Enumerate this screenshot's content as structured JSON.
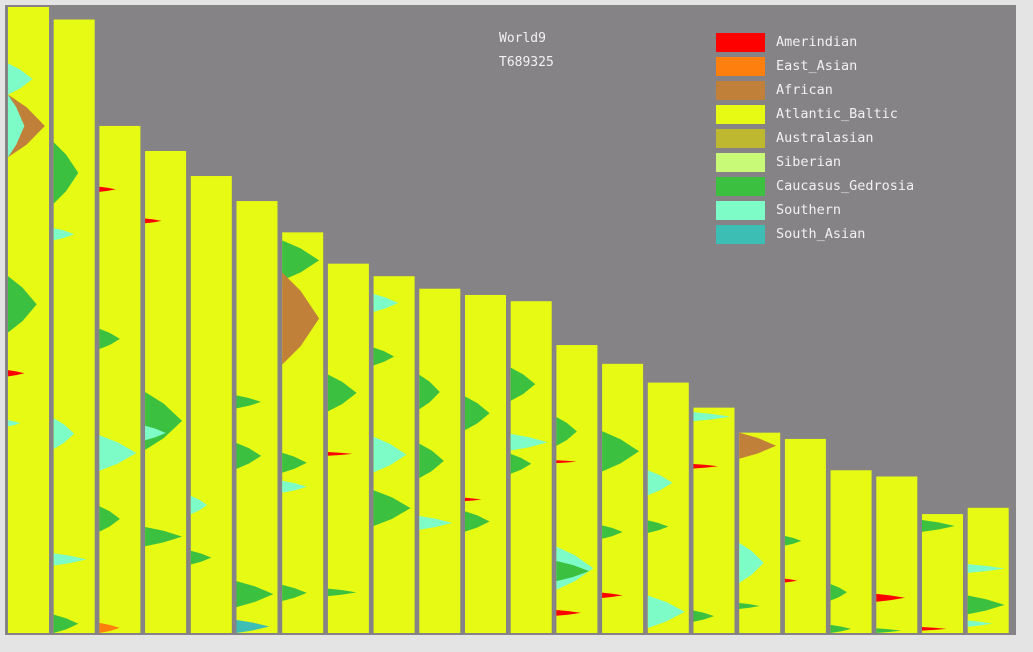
{
  "chart_data": {
    "type": "chromosome-painting",
    "title": "World9",
    "subtitle": "T689325",
    "legend_placement": "top-right",
    "background_color": "#858385",
    "legend": [
      {
        "name": "Amerindian",
        "color": "#ff0000"
      },
      {
        "name": "East_Asian",
        "color": "#ff7f0e"
      },
      {
        "name": "African",
        "color": "#c0803a"
      },
      {
        "name": "Atlantic_Baltic",
        "color": "#e6fa14"
      },
      {
        "name": "Australasian",
        "color": "#bdb830"
      },
      {
        "name": "Siberian",
        "color": "#c8fa78"
      },
      {
        "name": "Caucasus_Gedrosia",
        "color": "#3cc040"
      },
      {
        "name": "Southern",
        "color": "#7dfcc8"
      },
      {
        "name": "South_Asian",
        "color": "#3cbeb4"
      }
    ],
    "base_ancestry": "Atlantic_Baltic",
    "chromosomes": [
      {
        "relative_length": 1.0,
        "segments": [
          [
            "Southern",
            0.09,
            0.14,
            0.6
          ],
          [
            "African",
            0.14,
            0.24,
            0.9
          ],
          [
            "Southern",
            0.14,
            0.24,
            0.4
          ],
          [
            "Caucasus_Gedrosia",
            0.43,
            0.52,
            0.7
          ],
          [
            "Amerindian",
            0.58,
            0.59,
            0.4
          ],
          [
            "Southern",
            0.66,
            0.67,
            0.3
          ]
        ]
      },
      {
        "relative_length": 0.98,
        "segments": [
          [
            "Caucasus_Gedrosia",
            0.2,
            0.3,
            0.6
          ],
          [
            "Southern",
            0.34,
            0.36,
            0.5
          ],
          [
            "Southern",
            0.65,
            0.7,
            0.5
          ],
          [
            "Southern",
            0.87,
            0.89,
            0.8
          ],
          [
            "Caucasus_Gedrosia",
            0.97,
            1.0,
            0.6
          ]
        ]
      },
      {
        "relative_length": 0.81,
        "segments": [
          [
            "Amerindian",
            0.12,
            0.13,
            0.4
          ],
          [
            "Caucasus_Gedrosia",
            0.4,
            0.44,
            0.5
          ],
          [
            "Southern",
            0.61,
            0.68,
            0.9
          ],
          [
            "Caucasus_Gedrosia",
            0.75,
            0.8,
            0.5
          ],
          [
            "East_Asian",
            0.98,
            1.0,
            0.5
          ]
        ]
      },
      {
        "relative_length": 0.77,
        "segments": [
          [
            "Amerindian",
            0.14,
            0.15,
            0.4
          ],
          [
            "Caucasus_Gedrosia",
            0.5,
            0.62,
            0.9
          ],
          [
            "Southern",
            0.57,
            0.6,
            0.5
          ],
          [
            "Caucasus_Gedrosia",
            0.78,
            0.82,
            0.9
          ]
        ]
      },
      {
        "relative_length": 0.73,
        "segments": [
          [
            "Southern",
            0.7,
            0.74,
            0.4
          ],
          [
            "Caucasus_Gedrosia",
            0.82,
            0.85,
            0.5
          ]
        ]
      },
      {
        "relative_length": 0.69,
        "segments": [
          [
            "Caucasus_Gedrosia",
            0.45,
            0.48,
            0.6
          ],
          [
            "Caucasus_Gedrosia",
            0.56,
            0.62,
            0.6
          ],
          [
            "Caucasus_Gedrosia",
            0.88,
            0.94,
            0.9
          ],
          [
            "South_Asian",
            0.97,
            1.0,
            0.8
          ]
        ]
      },
      {
        "relative_length": 0.64,
        "segments": [
          [
            "Caucasus_Gedrosia",
            0.02,
            0.12,
            0.9
          ],
          [
            "African",
            0.1,
            0.33,
            0.9
          ],
          [
            "Caucasus_Gedrosia",
            0.55,
            0.6,
            0.6
          ],
          [
            "Southern",
            0.62,
            0.65,
            0.6
          ],
          [
            "Caucasus_Gedrosia",
            0.88,
            0.92,
            0.6
          ]
        ]
      },
      {
        "relative_length": 0.59,
        "segments": [
          [
            "Caucasus_Gedrosia",
            0.3,
            0.4,
            0.7
          ],
          [
            "Amerindian",
            0.51,
            0.52,
            0.6
          ],
          [
            "Caucasus_Gedrosia",
            0.88,
            0.9,
            0.7
          ]
        ]
      },
      {
        "relative_length": 0.57,
        "segments": [
          [
            "Southern",
            0.05,
            0.1,
            0.6
          ],
          [
            "Caucasus_Gedrosia",
            0.2,
            0.25,
            0.5
          ],
          [
            "Southern",
            0.45,
            0.55,
            0.8
          ],
          [
            "Caucasus_Gedrosia",
            0.6,
            0.7,
            0.9
          ]
        ]
      },
      {
        "relative_length": 0.55,
        "segments": [
          [
            "Caucasus_Gedrosia",
            0.25,
            0.35,
            0.5
          ],
          [
            "Caucasus_Gedrosia",
            0.45,
            0.55,
            0.6
          ],
          [
            "Southern",
            0.66,
            0.7,
            0.8
          ]
        ]
      },
      {
        "relative_length": 0.54,
        "segments": [
          [
            "Caucasus_Gedrosia",
            0.3,
            0.4,
            0.6
          ],
          [
            "Amerindian",
            0.6,
            0.61,
            0.4
          ],
          [
            "Caucasus_Gedrosia",
            0.64,
            0.7,
            0.6
          ]
        ]
      },
      {
        "relative_length": 0.53,
        "segments": [
          [
            "Caucasus_Gedrosia",
            0.2,
            0.3,
            0.6
          ],
          [
            "Southern",
            0.4,
            0.45,
            0.9
          ],
          [
            "Caucasus_Gedrosia",
            0.46,
            0.52,
            0.5
          ]
        ]
      },
      {
        "relative_length": 0.46,
        "segments": [
          [
            "Caucasus_Gedrosia",
            0.25,
            0.35,
            0.5
          ],
          [
            "Amerindian",
            0.4,
            0.41,
            0.5
          ],
          [
            "Southern",
            0.7,
            0.85,
            0.9
          ],
          [
            "Caucasus_Gedrosia",
            0.75,
            0.82,
            0.8
          ],
          [
            "Amerindian",
            0.92,
            0.94,
            0.6
          ]
        ]
      },
      {
        "relative_length": 0.43,
        "segments": [
          [
            "Caucasus_Gedrosia",
            0.25,
            0.4,
            0.9
          ],
          [
            "Caucasus_Gedrosia",
            0.6,
            0.65,
            0.5
          ],
          [
            "Amerindian",
            0.85,
            0.87,
            0.5
          ]
        ]
      },
      {
        "relative_length": 0.4,
        "segments": [
          [
            "Southern",
            0.35,
            0.45,
            0.6
          ],
          [
            "Caucasus_Gedrosia",
            0.55,
            0.6,
            0.5
          ],
          [
            "Southern",
            0.85,
            0.98,
            0.9
          ]
        ]
      },
      {
        "relative_length": 0.36,
        "segments": [
          [
            "Southern",
            0.02,
            0.06,
            0.9
          ],
          [
            "Amerindian",
            0.25,
            0.27,
            0.6
          ],
          [
            "Caucasus_Gedrosia",
            0.9,
            0.95,
            0.5
          ]
        ]
      },
      {
        "relative_length": 0.32,
        "segments": [
          [
            "African",
            0.0,
            0.13,
            0.9
          ],
          [
            "Southern",
            0.55,
            0.75,
            0.6
          ],
          [
            "Caucasus_Gedrosia",
            0.85,
            0.88,
            0.5
          ]
        ]
      },
      {
        "relative_length": 0.31,
        "segments": [
          [
            "Caucasus_Gedrosia",
            0.5,
            0.55,
            0.4
          ],
          [
            "Amerindian",
            0.72,
            0.74,
            0.3
          ]
        ]
      },
      {
        "relative_length": 0.26,
        "segments": [
          [
            "Caucasus_Gedrosia",
            0.7,
            0.8,
            0.4
          ],
          [
            "Caucasus_Gedrosia",
            0.95,
            1.0,
            0.5
          ]
        ]
      },
      {
        "relative_length": 0.25,
        "segments": [
          [
            "Amerindian",
            0.75,
            0.8,
            0.7
          ],
          [
            "Caucasus_Gedrosia",
            0.97,
            1.0,
            0.6
          ]
        ]
      },
      {
        "relative_length": 0.19,
        "segments": [
          [
            "Caucasus_Gedrosia",
            0.05,
            0.15,
            0.8
          ],
          [
            "Amerindian",
            0.95,
            0.98,
            0.6
          ]
        ]
      },
      {
        "relative_length": 0.2,
        "segments": [
          [
            "Southern",
            0.45,
            0.52,
            0.9
          ],
          [
            "Caucasus_Gedrosia",
            0.7,
            0.85,
            0.9
          ],
          [
            "Southern",
            0.9,
            0.95,
            0.6
          ]
        ]
      }
    ]
  }
}
